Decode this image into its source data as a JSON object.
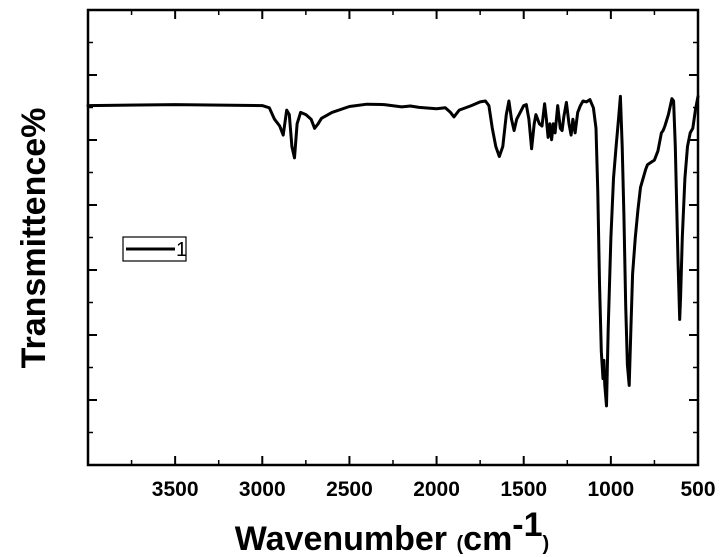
{
  "chart_data": {
    "type": "line",
    "title": "",
    "xlabel": {
      "main": "Wavenumber ",
      "open": "(",
      "unit": "cm",
      "exp": "-1",
      "close": ")"
    },
    "ylabel": "Transmittence%",
    "xlim": [
      4000,
      500
    ],
    "x_reversed": true,
    "ylim": [
      0,
      100
    ],
    "y_tick_labels_shown": false,
    "x_ticks": [
      3500,
      3000,
      2500,
      2000,
      1500,
      1000,
      500
    ],
    "x_tick_labels": [
      "3500",
      "3000",
      "2500",
      "2000",
      "1500",
      "1000",
      "500"
    ],
    "grid": false,
    "legend_position": "left-middle",
    "series": [
      {
        "name": "1",
        "color": "#000000",
        "points": [
          [
            4000,
            79
          ],
          [
            3500,
            79.2
          ],
          [
            3000,
            79
          ],
          [
            2960,
            78.5
          ],
          [
            2930,
            76
          ],
          [
            2900,
            74.5
          ],
          [
            2880,
            72.5
          ],
          [
            2860,
            78
          ],
          [
            2845,
            77
          ],
          [
            2830,
            70
          ],
          [
            2815,
            67.5
          ],
          [
            2800,
            75
          ],
          [
            2780,
            77.5
          ],
          [
            2750,
            77
          ],
          [
            2720,
            76
          ],
          [
            2700,
            74
          ],
          [
            2680,
            75
          ],
          [
            2660,
            76.2
          ],
          [
            2600,
            77.5
          ],
          [
            2500,
            78.8
          ],
          [
            2400,
            79.3
          ],
          [
            2300,
            79.2
          ],
          [
            2200,
            78.7
          ],
          [
            2150,
            78.9
          ],
          [
            2100,
            78.6
          ],
          [
            2000,
            78.3
          ],
          [
            1950,
            78.5
          ],
          [
            1920,
            77.5
          ],
          [
            1900,
            76.5
          ],
          [
            1870,
            78
          ],
          [
            1800,
            79
          ],
          [
            1750,
            79.8
          ],
          [
            1720,
            80
          ],
          [
            1700,
            79
          ],
          [
            1680,
            74
          ],
          [
            1660,
            70
          ],
          [
            1640,
            67.8
          ],
          [
            1620,
            70
          ],
          [
            1600,
            77
          ],
          [
            1585,
            80
          ],
          [
            1570,
            76
          ],
          [
            1555,
            73.5
          ],
          [
            1540,
            76
          ],
          [
            1520,
            77.5
          ],
          [
            1500,
            79
          ],
          [
            1485,
            79.2
          ],
          [
            1470,
            76
          ],
          [
            1455,
            69.5
          ],
          [
            1440,
            75
          ],
          [
            1430,
            77
          ],
          [
            1410,
            75
          ],
          [
            1395,
            74.5
          ],
          [
            1380,
            79.4
          ],
          [
            1370,
            76
          ],
          [
            1360,
            72
          ],
          [
            1350,
            75
          ],
          [
            1340,
            71.5
          ],
          [
            1330,
            75
          ],
          [
            1320,
            73
          ],
          [
            1305,
            79
          ],
          [
            1290,
            74
          ],
          [
            1280,
            73.5
          ],
          [
            1270,
            76.5
          ],
          [
            1255,
            79.7
          ],
          [
            1240,
            75
          ],
          [
            1228,
            72.5
          ],
          [
            1218,
            76
          ],
          [
            1205,
            73
          ],
          [
            1190,
            77.5
          ],
          [
            1175,
            79
          ],
          [
            1160,
            80
          ],
          [
            1140,
            79.8
          ],
          [
            1120,
            80.3
          ],
          [
            1100,
            78.5
          ],
          [
            1085,
            74
          ],
          [
            1075,
            60
          ],
          [
            1065,
            40
          ],
          [
            1055,
            25
          ],
          [
            1045,
            19
          ],
          [
            1040,
            23
          ],
          [
            1035,
            17.5
          ],
          [
            1025,
            13
          ],
          [
            1015,
            30
          ],
          [
            1000,
            50
          ],
          [
            985,
            63
          ],
          [
            970,
            70
          ],
          [
            955,
            76.5
          ],
          [
            945,
            81
          ],
          [
            935,
            70
          ],
          [
            925,
            55
          ],
          [
            915,
            35
          ],
          [
            905,
            22
          ],
          [
            895,
            17.5
          ],
          [
            885,
            30
          ],
          [
            875,
            42
          ],
          [
            860,
            50
          ],
          [
            845,
            56
          ],
          [
            830,
            61
          ],
          [
            800,
            65
          ],
          [
            790,
            66
          ],
          [
            770,
            66.5
          ],
          [
            750,
            67
          ],
          [
            730,
            69
          ],
          [
            710,
            73
          ],
          [
            700,
            73.5
          ],
          [
            690,
            74.5
          ],
          [
            670,
            77
          ],
          [
            650,
            80.5
          ],
          [
            640,
            80
          ],
          [
            630,
            70
          ],
          [
            615,
            45
          ],
          [
            605,
            32
          ],
          [
            600,
            37
          ],
          [
            590,
            50
          ],
          [
            575,
            63
          ],
          [
            560,
            70
          ],
          [
            545,
            73
          ],
          [
            530,
            74
          ],
          [
            515,
            78
          ],
          [
            505,
            80
          ],
          [
            500,
            81
          ]
        ]
      }
    ]
  }
}
